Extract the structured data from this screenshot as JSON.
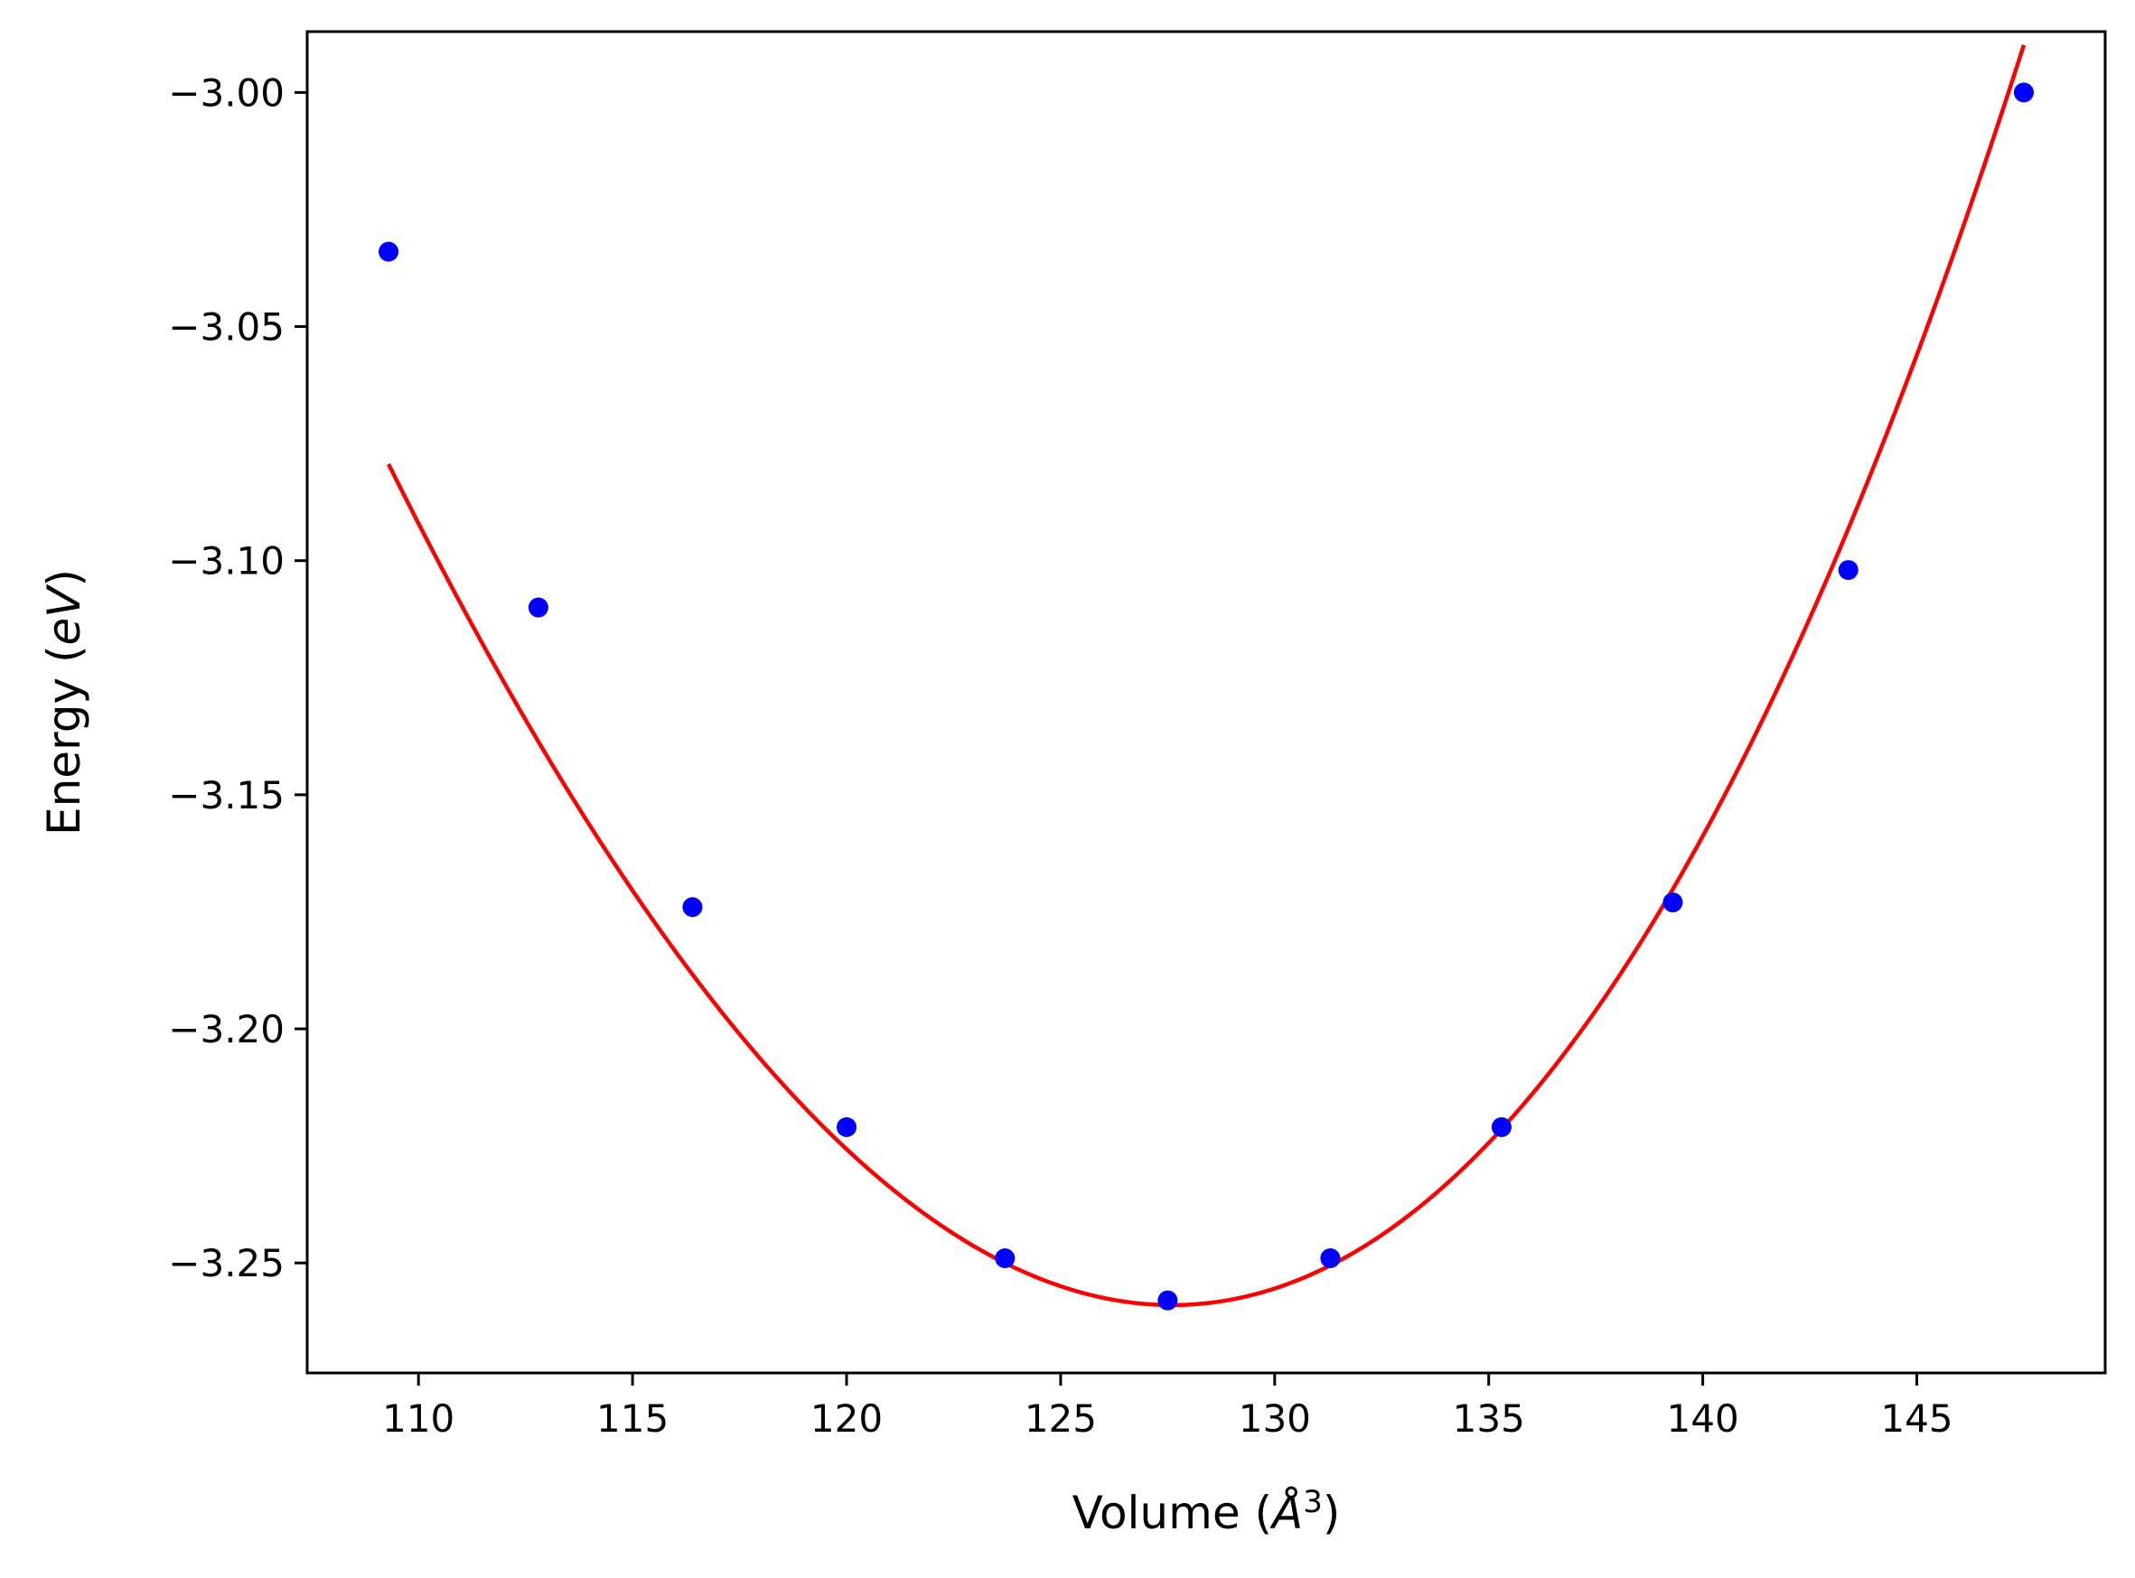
{
  "chart_data": {
    "type": "scatter",
    "xlabel": "Volume (Å³)",
    "ylabel": "Energy (eV)",
    "xlabel_parts": {
      "prefix": "Volume (",
      "symbol": "Å",
      "sup": "3",
      "suffix": ")"
    },
    "ylabel_parts": {
      "prefix": "Energy (",
      "symbol": "eV",
      "suffix": ")"
    },
    "xlim": [
      107.4,
      149.4
    ],
    "ylim": [
      -3.2735,
      -2.987
    ],
    "x_ticks": [
      110,
      115,
      120,
      125,
      130,
      135,
      140,
      145
    ],
    "x_tick_labels": [
      "110",
      "115",
      "120",
      "125",
      "130",
      "135",
      "140",
      "145"
    ],
    "y_ticks": [
      -3.0,
      -3.05,
      -3.1,
      -3.15,
      -3.2,
      -3.25
    ],
    "y_tick_labels": [
      "−3.00",
      "−3.05",
      "−3.10",
      "−3.15",
      "−3.20",
      "−3.25"
    ],
    "grid": false,
    "series": [
      {
        "kind": "points",
        "color": "#0000ff",
        "x": [
          109.3,
          112.8,
          116.4,
          120.0,
          123.7,
          127.5,
          131.3,
          135.3,
          139.3,
          143.4,
          147.5
        ],
        "y": [
          -3.034,
          -3.11,
          -3.174,
          -3.221,
          -3.249,
          -3.258,
          -3.249,
          -3.221,
          -3.173,
          -3.102,
          -3.0
        ]
      },
      {
        "kind": "fit-curve",
        "color": "#ff0000",
        "x_range": [
          109.3,
          147.5
        ],
        "min_x": 127.6,
        "min_y": -3.259,
        "coefficients": [
          -3.259,
          0.0,
          0.000605,
          3.75e-06
        ]
      }
    ]
  }
}
